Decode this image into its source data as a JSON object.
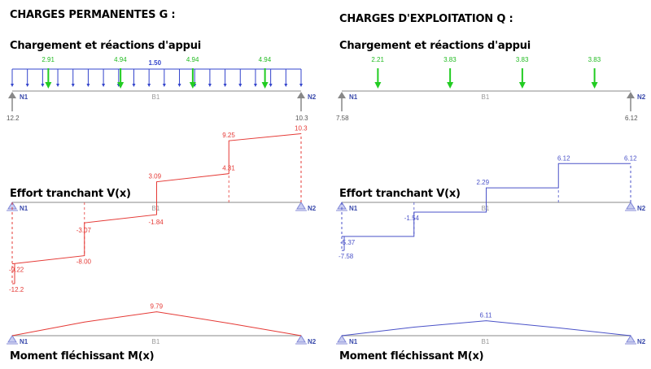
{
  "panels": [
    {
      "id": "g",
      "title": "CHARGES PERMANENTES G :",
      "color": "#e53935",
      "dist": {
        "label": "1.50"
      },
      "loads": [
        {
          "x": 0.5,
          "label": "2.91"
        },
        {
          "x": 1.5,
          "label": "4.94"
        },
        {
          "x": 2.5,
          "label": "4.94"
        },
        {
          "x": 3.5,
          "label": "4.94"
        }
      ],
      "reactions": [
        {
          "label": "12.2"
        },
        {
          "label": "10.3"
        }
      ],
      "shear": [
        {
          "value": -12.2,
          "label": "-12.2",
          "dx": -4
        },
        {
          "value": -9.22,
          "label": "-9.22"
        },
        {
          "value": -8.0,
          "label": "-8.00"
        },
        {
          "value": -3.07,
          "label": "-3.07"
        },
        {
          "value": -1.84,
          "label": "-1.84"
        },
        {
          "value": 3.09,
          "label": "3.09"
        },
        {
          "value": 4.31,
          "label": "4.31"
        },
        {
          "value": 9.25,
          "label": "9.25"
        },
        {
          "value": 10.3,
          "label": "10.3"
        }
      ],
      "moment": {
        "max_label": "9.79",
        "values": [
          0,
          5.6,
          9.79,
          5.1,
          0
        ]
      }
    },
    {
      "id": "q",
      "title": "CHARGES D'EXPLOITATION Q :",
      "color": "#4a52c8",
      "loads": [
        {
          "x": 0.5,
          "label": "2.21"
        },
        {
          "x": 1.5,
          "label": "3.83"
        },
        {
          "x": 2.5,
          "label": "3.83"
        },
        {
          "x": 3.5,
          "label": "3.83"
        }
      ],
      "reactions": [
        {
          "label": "7.58"
        },
        {
          "label": "6.12"
        }
      ],
      "shear": [
        {
          "value": -7.58,
          "label": "-7.58"
        },
        {
          "value": -5.37,
          "label": "-5.37"
        },
        {
          "value": -1.54,
          "label": "-1.54"
        },
        {
          "value": 2.29,
          "label": "2.29"
        },
        {
          "value": 6.12,
          "label": "6.12",
          "dx": -10
        },
        {
          "value": 6.12,
          "label": "6.12",
          "dx": 8
        }
      ],
      "moment": {
        "max_label": "6.11",
        "values": [
          0,
          3.5,
          6.11,
          3.2,
          0
        ]
      }
    }
  ],
  "labels": {
    "loading": "Chargement et réactions d'appui",
    "shear": "Effort tranchant V(x)",
    "moment": "Moment fléchissant M(x)",
    "node_left": "N1",
    "node_right": "N2",
    "beam": "B1"
  }
}
